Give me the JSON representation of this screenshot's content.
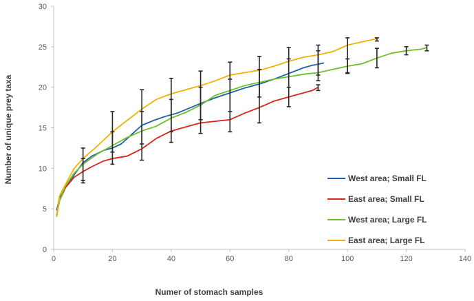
{
  "chart_data": {
    "type": "line",
    "title": "",
    "xlabel": "Numer of stomach samples",
    "ylabel": "Number of unique prey taxa",
    "xlim": [
      0,
      140
    ],
    "ylim": [
      0,
      30
    ],
    "x_ticks": [
      0,
      20,
      40,
      60,
      80,
      100,
      120,
      140
    ],
    "y_ticks": [
      0,
      5,
      10,
      15,
      20,
      25,
      30
    ],
    "grid": false,
    "legend_position": "right",
    "series": [
      {
        "name": "West area; Small FL",
        "color": "#1f5fa8",
        "points": [
          [
            1,
            4.8
          ],
          [
            2,
            6.3
          ],
          [
            4,
            7.6
          ],
          [
            7,
            9.2
          ],
          [
            10,
            10.7
          ],
          [
            13,
            11.5
          ],
          [
            17,
            12.2
          ],
          [
            20,
            12.5
          ],
          [
            23,
            13.0
          ],
          [
            26,
            14.0
          ],
          [
            30,
            15.3
          ],
          [
            34,
            15.9
          ],
          [
            38,
            16.4
          ],
          [
            42,
            16.8
          ],
          [
            46,
            17.4
          ],
          [
            50,
            18.0
          ],
          [
            55,
            18.7
          ],
          [
            60,
            19.3
          ],
          [
            65,
            19.9
          ],
          [
            70,
            20.4
          ],
          [
            75,
            21.0
          ],
          [
            80,
            21.7
          ],
          [
            85,
            22.4
          ],
          [
            88,
            22.7
          ],
          [
            92,
            23.0
          ]
        ],
        "error_bars": [
          {
            "x": 10,
            "low": 8.5,
            "high": 12.5
          },
          {
            "x": 20,
            "low": 10.5,
            "high": 14.5
          },
          {
            "x": 30,
            "low": 13.0,
            "high": 17.0
          },
          {
            "x": 40,
            "low": 14.5,
            "high": 18.5
          },
          {
            "x": 50,
            "low": 16.0,
            "high": 20.0
          },
          {
            "x": 60,
            "low": 17.0,
            "high": 21.0
          },
          {
            "x": 70,
            "low": 18.8,
            "high": 22.2
          },
          {
            "x": 80,
            "low": 20.0,
            "high": 23.5
          },
          {
            "x": 90,
            "low": 21.5,
            "high": 24.5
          }
        ]
      },
      {
        "name": "East area; Small FL",
        "color": "#d9231d",
        "points": [
          [
            1,
            4.2
          ],
          [
            2,
            6.0
          ],
          [
            4,
            7.6
          ],
          [
            7,
            8.9
          ],
          [
            10,
            9.6
          ],
          [
            13,
            10.2
          ],
          [
            17,
            10.9
          ],
          [
            20,
            11.2
          ],
          [
            25,
            11.5
          ],
          [
            30,
            12.4
          ],
          [
            35,
            13.7
          ],
          [
            40,
            14.6
          ],
          [
            45,
            15.1
          ],
          [
            50,
            15.6
          ],
          [
            55,
            15.8
          ],
          [
            60,
            16.0
          ],
          [
            65,
            16.8
          ],
          [
            70,
            17.5
          ],
          [
            75,
            18.3
          ],
          [
            80,
            18.8
          ],
          [
            85,
            19.3
          ],
          [
            88,
            19.6
          ],
          [
            90,
            20.0
          ]
        ],
        "error_bars": [
          {
            "x": 10,
            "low": 8.2,
            "high": 11.2
          },
          {
            "x": 90,
            "low": 19.6,
            "high": 20.3
          }
        ]
      },
      {
        "name": "West area; Large FL",
        "color": "#6dbe2b",
        "points": [
          [
            1,
            4.0
          ],
          [
            2,
            6.0
          ],
          [
            4,
            7.8
          ],
          [
            7,
            9.4
          ],
          [
            10,
            10.5
          ],
          [
            15,
            11.8
          ],
          [
            20,
            12.8
          ],
          [
            25,
            13.8
          ],
          [
            30,
            14.6
          ],
          [
            35,
            15.2
          ],
          [
            40,
            16.2
          ],
          [
            45,
            16.9
          ],
          [
            50,
            17.8
          ],
          [
            55,
            19.0
          ],
          [
            60,
            19.6
          ],
          [
            65,
            20.2
          ],
          [
            70,
            20.6
          ],
          [
            75,
            21.0
          ],
          [
            80,
            21.3
          ],
          [
            85,
            21.6
          ],
          [
            90,
            21.8
          ],
          [
            95,
            22.2
          ],
          [
            100,
            22.6
          ],
          [
            105,
            22.9
          ],
          [
            110,
            23.6
          ],
          [
            115,
            24.2
          ],
          [
            120,
            24.5
          ],
          [
            125,
            24.7
          ],
          [
            127,
            24.9
          ]
        ],
        "error_bars": [
          {
            "x": 100,
            "low": 21.7,
            "high": 23.5
          },
          {
            "x": 110,
            "low": 22.4,
            "high": 24.8
          },
          {
            "x": 120,
            "low": 24.0,
            "high": 25.0
          },
          {
            "x": 127,
            "low": 24.5,
            "high": 25.2
          }
        ]
      },
      {
        "name": "East area; Large FL",
        "color": "#f4b000",
        "points": [
          [
            1,
            4.0
          ],
          [
            2,
            6.6
          ],
          [
            4,
            8.0
          ],
          [
            7,
            10.0
          ],
          [
            10,
            11.2
          ],
          [
            15,
            12.8
          ],
          [
            20,
            14.5
          ],
          [
            25,
            15.9
          ],
          [
            30,
            17.3
          ],
          [
            35,
            18.5
          ],
          [
            40,
            19.2
          ],
          [
            45,
            19.7
          ],
          [
            50,
            20.2
          ],
          [
            55,
            20.8
          ],
          [
            60,
            21.5
          ],
          [
            65,
            21.8
          ],
          [
            70,
            22.1
          ],
          [
            75,
            22.6
          ],
          [
            80,
            23.2
          ],
          [
            85,
            23.7
          ],
          [
            90,
            24.0
          ],
          [
            95,
            24.4
          ],
          [
            100,
            25.2
          ],
          [
            105,
            25.6
          ],
          [
            110,
            26.0
          ]
        ],
        "error_bars": [
          {
            "x": 20,
            "low": 12.0,
            "high": 17.0
          },
          {
            "x": 30,
            "low": 11.0,
            "high": 19.7
          },
          {
            "x": 40,
            "low": 13.2,
            "high": 21.1
          },
          {
            "x": 50,
            "low": 14.3,
            "high": 22.0
          },
          {
            "x": 60,
            "low": 14.5,
            "high": 23.1
          },
          {
            "x": 70,
            "low": 15.6,
            "high": 23.8
          },
          {
            "x": 80,
            "low": 17.6,
            "high": 24.9
          },
          {
            "x": 90,
            "low": 20.8,
            "high": 25.2
          },
          {
            "x": 100,
            "low": 21.8,
            "high": 26.1
          },
          {
            "x": 110,
            "low": 25.7,
            "high": 26.1
          }
        ]
      }
    ]
  }
}
